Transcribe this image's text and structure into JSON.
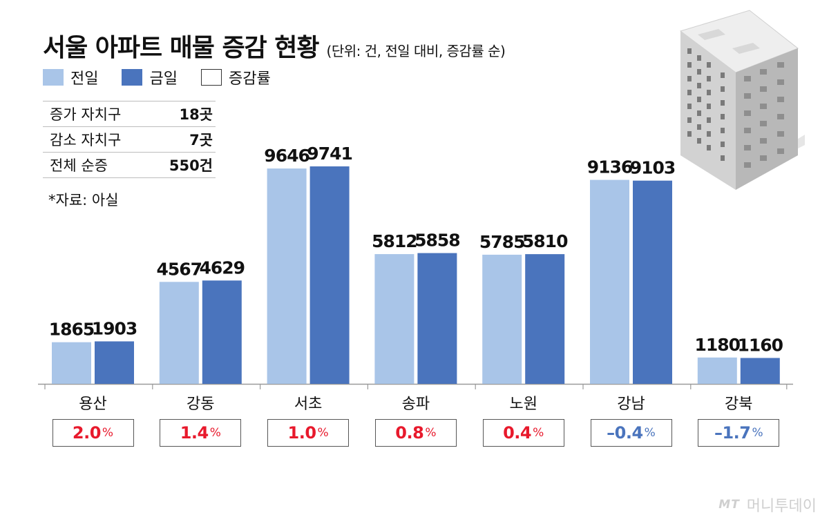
{
  "header": {
    "title": "서울 아파트 매물 증감 현황",
    "subtitle": "(단위: 건, 전일 대비, 증감률 순)"
  },
  "legend": {
    "prev": {
      "label": "전일",
      "color": "#a9c5e8"
    },
    "today": {
      "label": "금일",
      "color": "#4a74bd"
    },
    "rate": {
      "label": "증감률"
    }
  },
  "summary": [
    {
      "label": "증가 자치구",
      "value": "18곳"
    },
    {
      "label": "감소 자치구",
      "value": "7곳"
    },
    {
      "label": "전체 순증",
      "value": "550건"
    }
  ],
  "source": "*자료: 아실",
  "watermark": {
    "logo": "MT",
    "text": "머니투데이"
  },
  "colors": {
    "positive": "#e8192c",
    "negative": "#4a74bd",
    "axis": "#999999"
  },
  "chart_data": {
    "type": "bar",
    "title": "서울 아파트 매물 증감 현황",
    "xlabel": "",
    "ylabel": "건",
    "ylim": [
      0,
      10000
    ],
    "grid": false,
    "legend_position": "top-left",
    "categories": [
      "용산",
      "강동",
      "서초",
      "송파",
      "노원",
      "강남",
      "강북"
    ],
    "series": [
      {
        "name": "전일",
        "values": [
          1865,
          4567,
          9646,
          5812,
          5785,
          9136,
          1180
        ]
      },
      {
        "name": "금일",
        "values": [
          1903,
          4629,
          9741,
          5858,
          5810,
          9103,
          1160
        ]
      }
    ],
    "rates": [
      {
        "display": "2.0",
        "sign": "positive"
      },
      {
        "display": "1.4",
        "sign": "positive"
      },
      {
        "display": "1.0",
        "sign": "positive"
      },
      {
        "display": "0.8",
        "sign": "positive"
      },
      {
        "display": "0.4",
        "sign": "positive"
      },
      {
        "display": "–0.4",
        "sign": "negative"
      },
      {
        "display": "–1.7",
        "sign": "negative"
      }
    ],
    "rate_unit": "%"
  }
}
